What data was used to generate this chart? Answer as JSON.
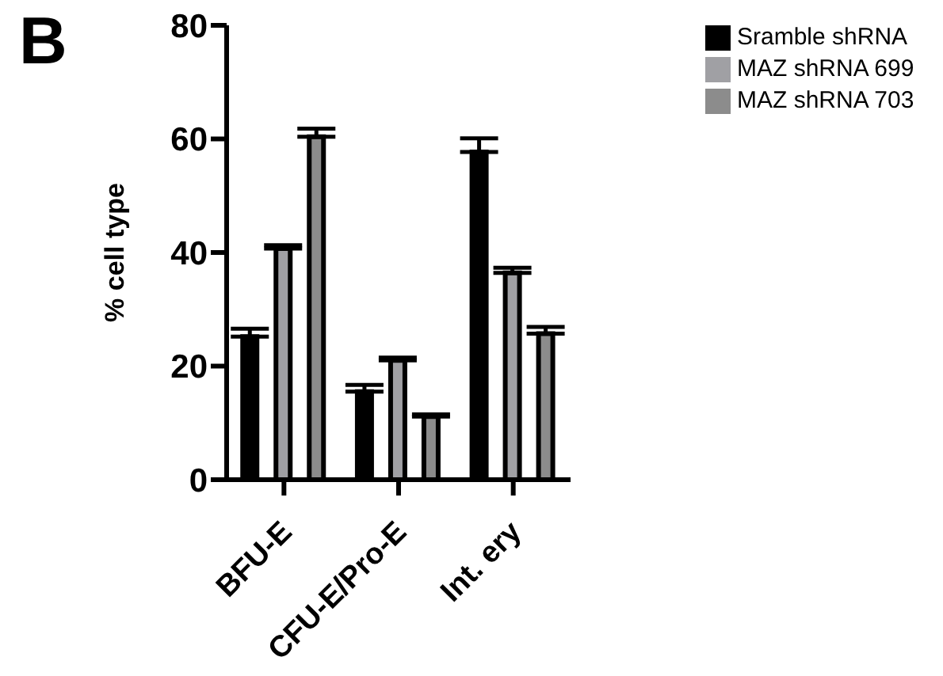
{
  "chart_data": {
    "type": "bar",
    "ylabel": "% cell type",
    "annotations": [
      "B"
    ],
    "categories": [
      "BFU-E",
      "CFU-E/Pro-E",
      "Int. ery"
    ],
    "series": [
      {
        "name": "Sramble shRNA",
        "color": "#000000",
        "values": [
          25.2,
          15.5,
          57.7
        ],
        "errors": [
          1.4,
          1.2,
          2.4
        ]
      },
      {
        "name": "MAZ shRNA 699",
        "color": "#a0a0a4",
        "values": [
          40.7,
          21.0,
          36.4
        ],
        "errors": [
          0.6,
          0.5,
          0.9
        ]
      },
      {
        "name": "MAZ shRNA 703",
        "color": "#8c8c8c",
        "values": [
          60.4,
          11.1,
          25.7
        ],
        "errors": [
          1.4,
          0.4,
          1.2
        ]
      }
    ],
    "ylim": [
      0,
      80
    ],
    "yticks": [
      0,
      20,
      40,
      60,
      80
    ],
    "grid": false,
    "legend": "top right"
  }
}
